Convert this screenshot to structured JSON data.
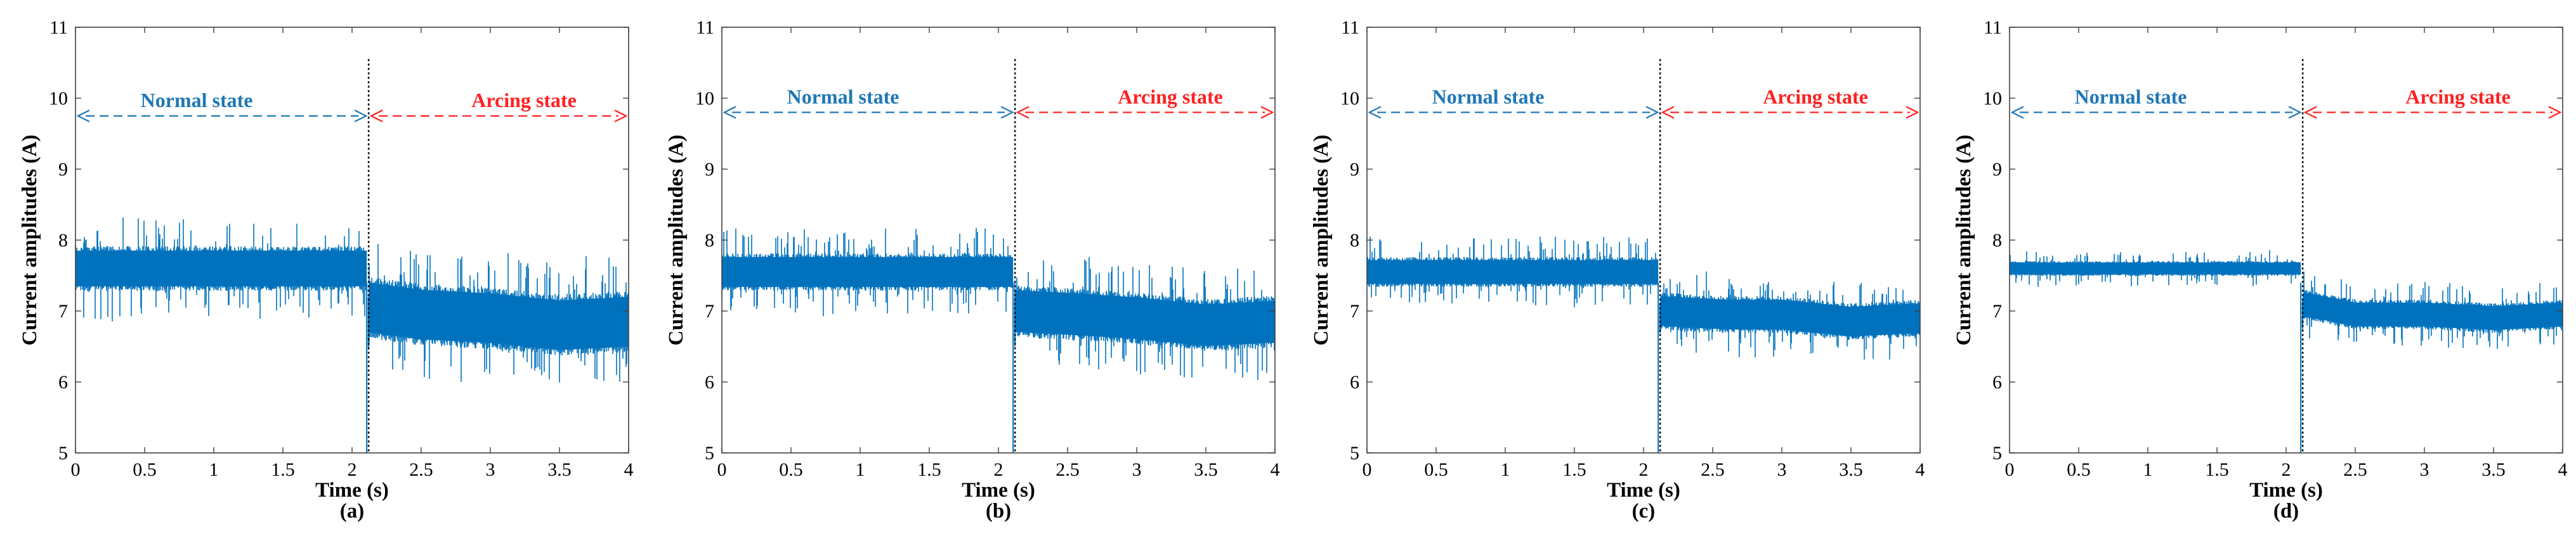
{
  "figure": {
    "normal_color": "#1f77b4",
    "arcing_color": "#ff2020",
    "signal_color": "#0072bd"
  },
  "chart_data": [
    {
      "type": "line",
      "panel_label": "(a)",
      "xlabel": "Time (s)",
      "ylabel": "Current amplitudes (A)",
      "xlim": [
        0,
        4
      ],
      "ylim": [
        5,
        11
      ],
      "xticks": [
        0,
        0.5,
        1,
        1.5,
        2,
        2.5,
        3,
        3.5,
        4
      ],
      "xtick_labels": [
        "0",
        "0.5",
        "1",
        "1.5",
        "2",
        "2.5",
        "3",
        "3.5",
        "4"
      ],
      "yticks": [
        5,
        6,
        7,
        8,
        9,
        10,
        11
      ],
      "ytick_labels": [
        "5",
        "6",
        "7",
        "8",
        "9",
        "10",
        "11"
      ],
      "transition_time": 2.12,
      "annotation_y": 9.75,
      "annotations": {
        "normal": "Normal state",
        "arcing": "Arcing state"
      },
      "series": [
        {
          "name": "normal",
          "t_start": 0,
          "t_end": 2.1,
          "low": 7.15,
          "high": 8.05,
          "trend": [
            [
              0,
              7.6
            ],
            [
              2.1,
              7.6
            ]
          ],
          "noise": 0.45
        },
        {
          "name": "arcing",
          "t_start": 2.12,
          "t_end": 4,
          "low": 6.35,
          "high": 7.6,
          "trend": [
            [
              2.12,
              7.05
            ],
            [
              2.5,
              6.95
            ],
            [
              3.0,
              6.9
            ],
            [
              3.5,
              6.8
            ],
            [
              4,
              6.85
            ]
          ],
          "noise": 0.55
        }
      ],
      "spike_min": 5.0
    },
    {
      "type": "line",
      "panel_label": "(b)",
      "xlabel": "Time (s)",
      "ylabel": "Current amplitudes (A)",
      "xlim": [
        0,
        4
      ],
      "ylim": [
        5,
        11
      ],
      "xticks": [
        0,
        0.5,
        1,
        1.5,
        2,
        2.5,
        3,
        3.5,
        4
      ],
      "xtick_labels": [
        "0",
        "0.5",
        "1",
        "1.5",
        "2",
        "2.5",
        "3",
        "3.5",
        "4"
      ],
      "yticks": [
        5,
        6,
        7,
        8,
        9,
        10,
        11
      ],
      "ytick_labels": [
        "5",
        "6",
        "7",
        "8",
        "9",
        "10",
        "11"
      ],
      "transition_time": 2.12,
      "annotation_y": 9.8,
      "annotations": {
        "normal": "Normal state",
        "arcing": "Arcing state"
      },
      "series": [
        {
          "name": "normal",
          "t_start": 0,
          "t_end": 2.1,
          "low": 7.2,
          "high": 7.95,
          "trend": [
            [
              0,
              7.55
            ],
            [
              2.1,
              7.55
            ]
          ],
          "noise": 0.4
        },
        {
          "name": "arcing",
          "t_start": 2.12,
          "t_end": 4,
          "low": 6.4,
          "high": 7.45,
          "trend": [
            [
              2.12,
              7.0
            ],
            [
              2.6,
              6.95
            ],
            [
              3.0,
              6.9
            ],
            [
              3.5,
              6.8
            ],
            [
              4,
              6.85
            ]
          ],
          "noise": 0.5
        }
      ],
      "spike_min": 5.0
    },
    {
      "type": "line",
      "panel_label": "(c)",
      "xlabel": "Time (s)",
      "ylabel": "Current amplitudes (A)",
      "xlim": [
        0,
        4
      ],
      "ylim": [
        5,
        11
      ],
      "xticks": [
        0,
        0.5,
        1,
        1.5,
        2,
        2.5,
        3,
        3.5,
        4
      ],
      "xtick_labels": [
        "0",
        "0.5",
        "1",
        "1.5",
        "2",
        "2.5",
        "3",
        "3.5",
        "4"
      ],
      "yticks": [
        5,
        6,
        7,
        8,
        9,
        10,
        11
      ],
      "ytick_labels": [
        "5",
        "6",
        "7",
        "8",
        "9",
        "10",
        "11"
      ],
      "transition_time": 2.12,
      "annotation_y": 9.8,
      "annotations": {
        "normal": "Normal state",
        "arcing": "Arcing state"
      },
      "series": [
        {
          "name": "normal",
          "t_start": 0,
          "t_end": 2.1,
          "low": 7.25,
          "high": 7.85,
          "trend": [
            [
              0,
              7.55
            ],
            [
              2.1,
              7.55
            ]
          ],
          "noise": 0.32
        },
        {
          "name": "arcing",
          "t_start": 2.12,
          "t_end": 4,
          "low": 6.55,
          "high": 7.3,
          "trend": [
            [
              2.12,
              7.0
            ],
            [
              2.6,
              6.95
            ],
            [
              3.0,
              6.95
            ],
            [
              3.5,
              6.85
            ],
            [
              4,
              6.9
            ]
          ],
          "noise": 0.38
        }
      ],
      "spike_min": 5.0
    },
    {
      "type": "line",
      "panel_label": "(d)",
      "xlabel": "Time (s)",
      "ylabel": "Current amplitudes (A)",
      "xlim": [
        0,
        4
      ],
      "ylim": [
        5,
        11
      ],
      "xticks": [
        0,
        0.5,
        1,
        1.5,
        2,
        2.5,
        3,
        3.5,
        4
      ],
      "xtick_labels": [
        "0",
        "0.5",
        "1",
        "1.5",
        "2",
        "2.5",
        "3",
        "3.5",
        "4"
      ],
      "yticks": [
        5,
        6,
        7,
        8,
        9,
        10,
        11
      ],
      "ytick_labels": [
        "5",
        "6",
        "7",
        "8",
        "9",
        "10",
        "11"
      ],
      "transition_time": 2.12,
      "annotation_y": 9.8,
      "annotations": {
        "normal": "Normal state",
        "arcing": "Arcing state"
      },
      "series": [
        {
          "name": "normal",
          "t_start": 0,
          "t_end": 2.1,
          "low": 7.45,
          "high": 7.75,
          "trend": [
            [
              0,
              7.6
            ],
            [
              2.1,
              7.6
            ]
          ],
          "noise": 0.16
        },
        {
          "name": "arcing",
          "t_start": 2.12,
          "t_end": 4,
          "low": 6.7,
          "high": 7.3,
          "trend": [
            [
              2.12,
              7.1
            ],
            [
              2.5,
              6.95
            ],
            [
              3.0,
              6.95
            ],
            [
              3.5,
              6.9
            ],
            [
              4,
              6.95
            ]
          ],
          "noise": 0.28
        }
      ],
      "spike_min": 5.0
    }
  ]
}
